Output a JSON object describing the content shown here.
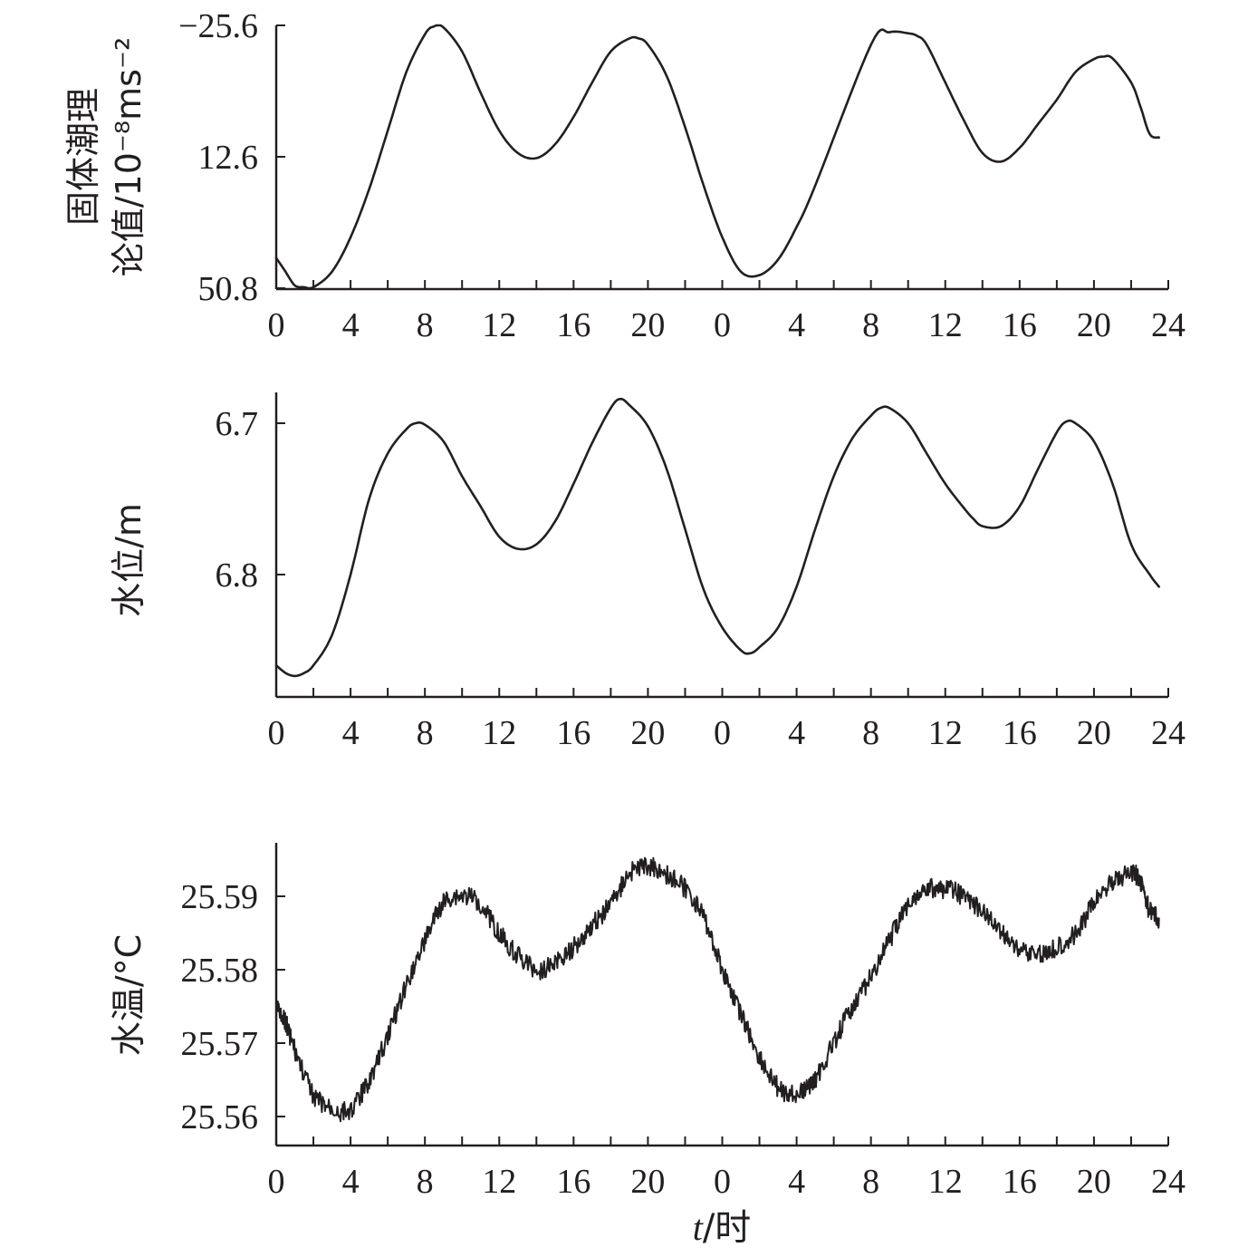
{
  "colors": {
    "line": "#231f20",
    "background": "#ffffff"
  },
  "figure": {
    "xlabel_var": "t",
    "xlabel_unit": "/时"
  },
  "chart_data": [
    {
      "type": "line",
      "ylabel_lines": [
        "固体潮理",
        "论值/10⁻⁸ms⁻²"
      ],
      "ytick_labels": [
        "−25.6",
        "12.6",
        "50.8"
      ],
      "yticks": [
        -25.6,
        12.6,
        50.8
      ],
      "ylim": [
        50.8,
        -25.6
      ],
      "y_inverted": true,
      "x_ticks": [
        "0",
        "4",
        "8",
        "12",
        "16",
        "20",
        "0",
        "4",
        "8",
        "12",
        "16",
        "20",
        "24"
      ],
      "xlim": [
        0,
        48
      ],
      "grid": false,
      "series": [
        {
          "x": [
            0,
            0.5,
            1,
            1.5,
            2,
            3,
            4,
            5,
            6,
            7,
            8,
            8.5,
            9,
            10,
            11,
            12,
            13,
            14,
            15,
            16,
            17,
            18,
            19,
            19.5,
            20,
            21,
            22,
            23,
            24,
            25,
            26,
            27,
            28,
            29,
            32,
            33,
            34,
            34.5,
            35,
            36,
            37,
            38,
            39,
            40,
            41,
            42,
            43,
            44,
            44.5,
            45,
            46,
            46.5,
            47,
            47.5
          ],
          "y": [
            42,
            46,
            50,
            50.5,
            50.5,
            46,
            36,
            22,
            5,
            -12,
            -23,
            -25.3,
            -25,
            -18,
            -6,
            5,
            11.5,
            13,
            9,
            1,
            -9,
            -18,
            -21.8,
            -21.8,
            -20,
            -11,
            4,
            21,
            36,
            46,
            47,
            42.5,
            33,
            21,
            -20,
            -23.6,
            -23.3,
            -22.5,
            -20,
            -9,
            2,
            11.5,
            14,
            10,
            3,
            -4,
            -12,
            -15.8,
            -16.5,
            -16,
            -9,
            -2,
            6,
            7
          ]
        }
      ]
    },
    {
      "type": "line",
      "ylabel": "水位/m",
      "ytick_labels": [
        "6.7",
        "6.8"
      ],
      "yticks": [
        6.7,
        6.8
      ],
      "ylim": [
        6.88,
        6.68
      ],
      "y_inverted": true,
      "x_ticks": [
        "0",
        "4",
        "8",
        "12",
        "16",
        "20",
        "0",
        "4",
        "8",
        "12",
        "16",
        "20",
        "24"
      ],
      "xlim": [
        0,
        48
      ],
      "grid": false,
      "series": [
        {
          "x": [
            0,
            0.5,
            1,
            1.5,
            2,
            3,
            4,
            5,
            6,
            7,
            7.5,
            8,
            9,
            10,
            11,
            12,
            13,
            14,
            15,
            16,
            17,
            18,
            18.5,
            19,
            20,
            21,
            22,
            23,
            24,
            25,
            25.5,
            26,
            27,
            28,
            29,
            30,
            31,
            32,
            32.5,
            33,
            34,
            35,
            36,
            37,
            37.5,
            38,
            39,
            40,
            41,
            42,
            42.5,
            43,
            44,
            45,
            46,
            47,
            47.5
          ],
          "y": [
            6.86,
            6.865,
            6.867,
            6.865,
            6.86,
            6.84,
            6.8,
            6.75,
            6.72,
            6.704,
            6.7,
            6.701,
            6.712,
            6.735,
            6.755,
            6.775,
            6.783,
            6.78,
            6.765,
            6.74,
            6.713,
            6.69,
            6.684,
            6.688,
            6.702,
            6.73,
            6.77,
            6.81,
            6.835,
            6.85,
            6.852,
            6.848,
            6.835,
            6.808,
            6.77,
            6.735,
            6.71,
            6.695,
            6.69,
            6.69,
            6.7,
            6.72,
            6.74,
            6.756,
            6.763,
            6.768,
            6.768,
            6.755,
            6.73,
            6.706,
            6.699,
            6.7,
            6.712,
            6.74,
            6.78,
            6.8,
            6.808
          ]
        }
      ]
    },
    {
      "type": "line",
      "ylabel": "水温/°C",
      "ytick_labels": [
        "25.56",
        "25.57",
        "25.58",
        "25.59"
      ],
      "yticks": [
        25.56,
        25.57,
        25.58,
        25.59
      ],
      "ylim": [
        25.556,
        25.597
      ],
      "y_inverted": false,
      "x_ticks": [
        "0",
        "4",
        "8",
        "12",
        "16",
        "20",
        "0",
        "4",
        "8",
        "12",
        "16",
        "20",
        "24"
      ],
      "xlim": [
        0,
        48
      ],
      "grid": false,
      "noisy": true,
      "series": [
        {
          "x": [
            0,
            0.5,
            1,
            2,
            3,
            4,
            5,
            6,
            7,
            8,
            9,
            10,
            11,
            12,
            13,
            14,
            15,
            16,
            17,
            18,
            19,
            20,
            21,
            22,
            23,
            24,
            25,
            26,
            27,
            28,
            29,
            30,
            31,
            32,
            33,
            34,
            35,
            36,
            37,
            38,
            39,
            40,
            41,
            42,
            43,
            44,
            45,
            46,
            46.5,
            47,
            47.5
          ],
          "y": [
            25.575,
            25.573,
            25.569,
            25.563,
            25.561,
            25.561,
            25.565,
            25.571,
            25.578,
            25.584,
            25.589,
            25.59,
            25.589,
            25.585,
            25.582,
            25.58,
            25.581,
            25.583,
            25.586,
            25.589,
            25.593,
            25.594,
            25.593,
            25.591,
            25.587,
            25.58,
            25.574,
            25.568,
            25.564,
            25.563,
            25.565,
            25.57,
            25.575,
            25.579,
            25.584,
            25.589,
            25.591,
            25.591,
            25.59,
            25.588,
            25.585,
            25.583,
            25.582,
            25.583,
            25.585,
            25.589,
            25.592,
            25.593,
            25.592,
            25.588,
            25.587
          ]
        }
      ]
    }
  ]
}
